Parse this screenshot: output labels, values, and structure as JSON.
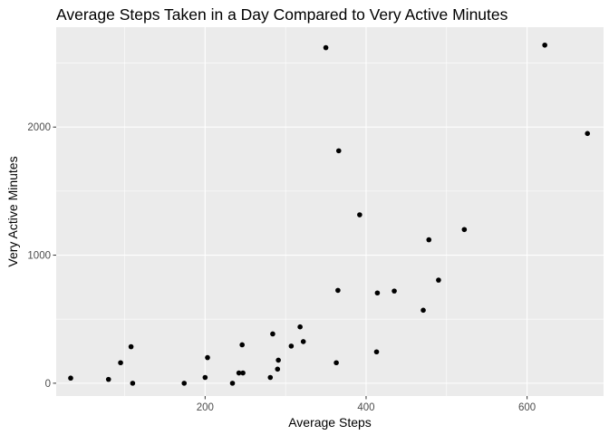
{
  "chart_data": {
    "type": "scatter",
    "title": "Average Steps Taken in a Day Compared to Very Active Minutes",
    "xlabel": "Average Steps",
    "ylabel": "Very Active Minutes",
    "xlim": [
      15,
      695
    ],
    "ylim": [
      -100,
      2780
    ],
    "x_ticks": [
      200,
      400,
      600
    ],
    "y_ticks": [
      0,
      1000,
      2000
    ],
    "x_minor": [
      100,
      300,
      500
    ],
    "y_minor": [
      500,
      1500,
      2500
    ],
    "grid": true,
    "background": "#ebebeb",
    "grid_color": "#ffffff",
    "point_color": "#000000",
    "points": [
      {
        "x": 33,
        "y": 40
      },
      {
        "x": 80,
        "y": 30
      },
      {
        "x": 95,
        "y": 160
      },
      {
        "x": 108,
        "y": 285
      },
      {
        "x": 110,
        "y": 0
      },
      {
        "x": 174,
        "y": 0
      },
      {
        "x": 200,
        "y": 45
      },
      {
        "x": 203,
        "y": 200
      },
      {
        "x": 234,
        "y": 0
      },
      {
        "x": 242,
        "y": 80
      },
      {
        "x": 246,
        "y": 300
      },
      {
        "x": 247,
        "y": 80
      },
      {
        "x": 281,
        "y": 45
      },
      {
        "x": 284,
        "y": 385
      },
      {
        "x": 290,
        "y": 110
      },
      {
        "x": 291,
        "y": 180
      },
      {
        "x": 307,
        "y": 290
      },
      {
        "x": 318,
        "y": 440
      },
      {
        "x": 322,
        "y": 325
      },
      {
        "x": 350,
        "y": 2620
      },
      {
        "x": 363,
        "y": 160
      },
      {
        "x": 365,
        "y": 725
      },
      {
        "x": 366,
        "y": 1815
      },
      {
        "x": 392,
        "y": 1315
      },
      {
        "x": 413,
        "y": 245
      },
      {
        "x": 414,
        "y": 705
      },
      {
        "x": 435,
        "y": 720
      },
      {
        "x": 471,
        "y": 570
      },
      {
        "x": 478,
        "y": 1120
      },
      {
        "x": 490,
        "y": 805
      },
      {
        "x": 522,
        "y": 1200
      },
      {
        "x": 622,
        "y": 2640
      },
      {
        "x": 675,
        "y": 1950
      }
    ]
  }
}
